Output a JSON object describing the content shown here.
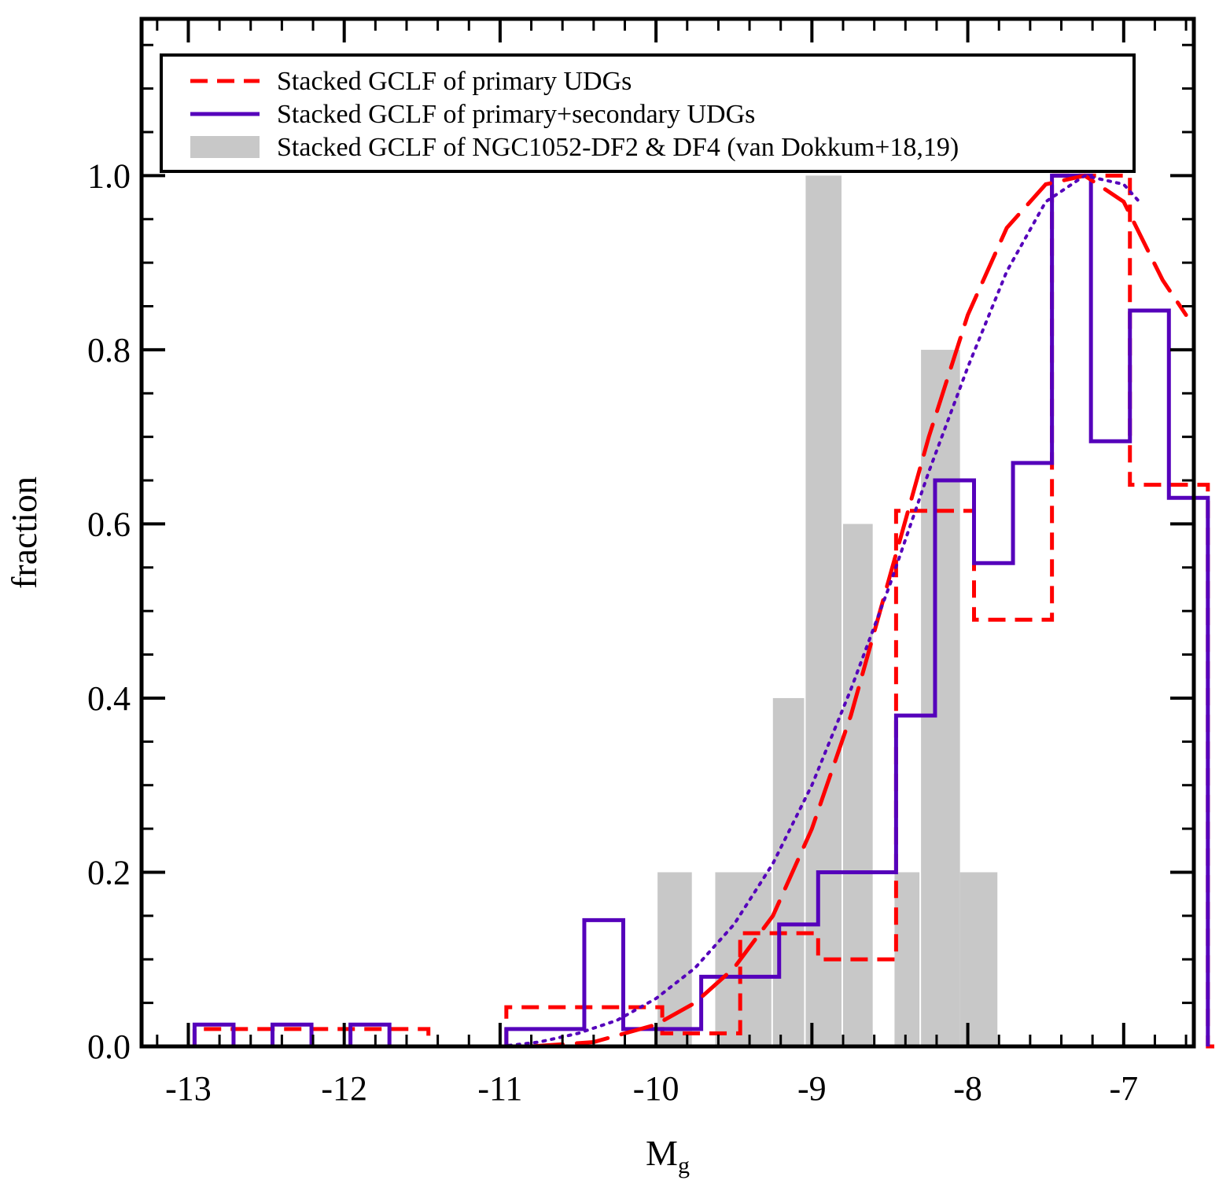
{
  "chart_data": {
    "type": "bar",
    "xlabel": "M",
    "xlabel_subscript": "g",
    "ylabel": "fraction",
    "xlim": [
      -13.3,
      -6.55
    ],
    "ylim": [
      0.0,
      1.18
    ],
    "xticks": [
      -13,
      -12,
      -11,
      -10,
      -9,
      -8,
      -7
    ],
    "xtick_labels": [
      "-13",
      "-12",
      "-11",
      "-10",
      "-9",
      "-8",
      "-7"
    ],
    "yticks": [
      0.0,
      0.2,
      0.4,
      0.6,
      0.8,
      1.0
    ],
    "ytick_labels": [
      "0.0",
      "0.2",
      "0.4",
      "0.6",
      "0.8",
      "1.0"
    ],
    "legend_position": "top",
    "legend": [
      {
        "label": "Stacked GCLF of primary UDGs",
        "style": "dashed",
        "color": "#ff0000"
      },
      {
        "label": "Stacked GCLF of primary+secondary UDGs",
        "style": "solid",
        "color": "#5500bb"
      },
      {
        "label": "Stacked GCLF of NGC1052-DF2 & DF4 (van Dokkum+18,19)",
        "style": "filled",
        "color": "#c8c8c8"
      }
    ],
    "series": [
      {
        "name": "Stacked GCLF of primary UDGs",
        "kind": "step",
        "color": "#ff0000",
        "dash": "dashed",
        "edges": [
          -12.96,
          -12.46,
          -11.96,
          -11.46,
          -10.96,
          -10.46,
          -9.96,
          -9.46,
          -8.96,
          -8.46,
          -7.96,
          -7.46,
          -6.96,
          -6.46
        ],
        "values": [
          0.02,
          0.02,
          0.02,
          0.0,
          0.045,
          0.045,
          0.015,
          0.13,
          0.1,
          0.615,
          0.49,
          1.0,
          0.645,
          0.0
        ]
      },
      {
        "name": "Stacked GCLF of primary+secondary UDGs",
        "kind": "step",
        "color": "#5500bb",
        "dash": "solid",
        "edges": [
          -12.96,
          -12.71,
          -12.46,
          -12.21,
          -11.96,
          -11.71,
          -11.46,
          -11.21,
          -10.96,
          -10.71,
          -10.46,
          -10.21,
          -9.96,
          -9.71,
          -9.46,
          -9.21,
          -8.96,
          -8.71,
          -8.46,
          -8.21,
          -7.96,
          -7.71,
          -7.46,
          -7.21,
          -6.96,
          -6.71
        ],
        "values": [
          0.025,
          0.0,
          0.025,
          0.0,
          0.025,
          0.0,
          0.0,
          0.0,
          0.02,
          0.02,
          0.145,
          0.02,
          0.02,
          0.08,
          0.08,
          0.14,
          0.2,
          0.2,
          0.38,
          0.65,
          0.555,
          0.67,
          1.0,
          0.695,
          0.845,
          0.63
        ]
      },
      {
        "name": "Stacked GCLF of NGC1052-DF2 & DF4 (van Dokkum+18,19)",
        "kind": "filled-bars",
        "color": "#c8c8c8",
        "bars": [
          {
            "x0": -9.99,
            "x1": -9.77,
            "value": 0.2
          },
          {
            "x0": -9.62,
            "x1": -9.26,
            "value": 0.2
          },
          {
            "x0": -9.25,
            "x1": -9.05,
            "value": 0.4
          },
          {
            "x0": -9.04,
            "x1": -8.81,
            "value": 1.0
          },
          {
            "x0": -8.8,
            "x1": -8.61,
            "value": 0.6
          },
          {
            "x0": -8.47,
            "x1": -8.31,
            "value": 0.2
          },
          {
            "x0": -8.3,
            "x1": -8.05,
            "value": 0.8
          },
          {
            "x0": -8.05,
            "x1": -7.81,
            "value": 0.2
          }
        ]
      },
      {
        "kind": "curve",
        "color": "#ff0000",
        "dash": "long-dashed",
        "x": [
          -10.8,
          -10.4,
          -10.0,
          -9.75,
          -9.5,
          -9.25,
          -9.0,
          -8.75,
          -8.5,
          -8.25,
          -8.0,
          -7.75,
          -7.5,
          -7.25,
          -7.0,
          -6.75,
          -6.6
        ],
        "y": [
          0.0,
          0.005,
          0.025,
          0.05,
          0.09,
          0.15,
          0.25,
          0.38,
          0.54,
          0.7,
          0.84,
          0.94,
          0.99,
          1.0,
          0.97,
          0.88,
          0.84
        ]
      },
      {
        "kind": "curve",
        "color": "#5500bb",
        "dash": "dotted",
        "x": [
          -11.0,
          -10.75,
          -10.5,
          -10.25,
          -10.0,
          -9.75,
          -9.5,
          -9.25,
          -9.0,
          -8.75,
          -8.5,
          -8.25,
          -8.0,
          -7.75,
          -7.5,
          -7.25,
          -7.0,
          -6.9
        ],
        "y": [
          0.0,
          0.005,
          0.015,
          0.03,
          0.055,
          0.09,
          0.14,
          0.21,
          0.3,
          0.41,
          0.53,
          0.66,
          0.78,
          0.89,
          0.97,
          1.0,
          0.99,
          0.97
        ]
      }
    ]
  }
}
